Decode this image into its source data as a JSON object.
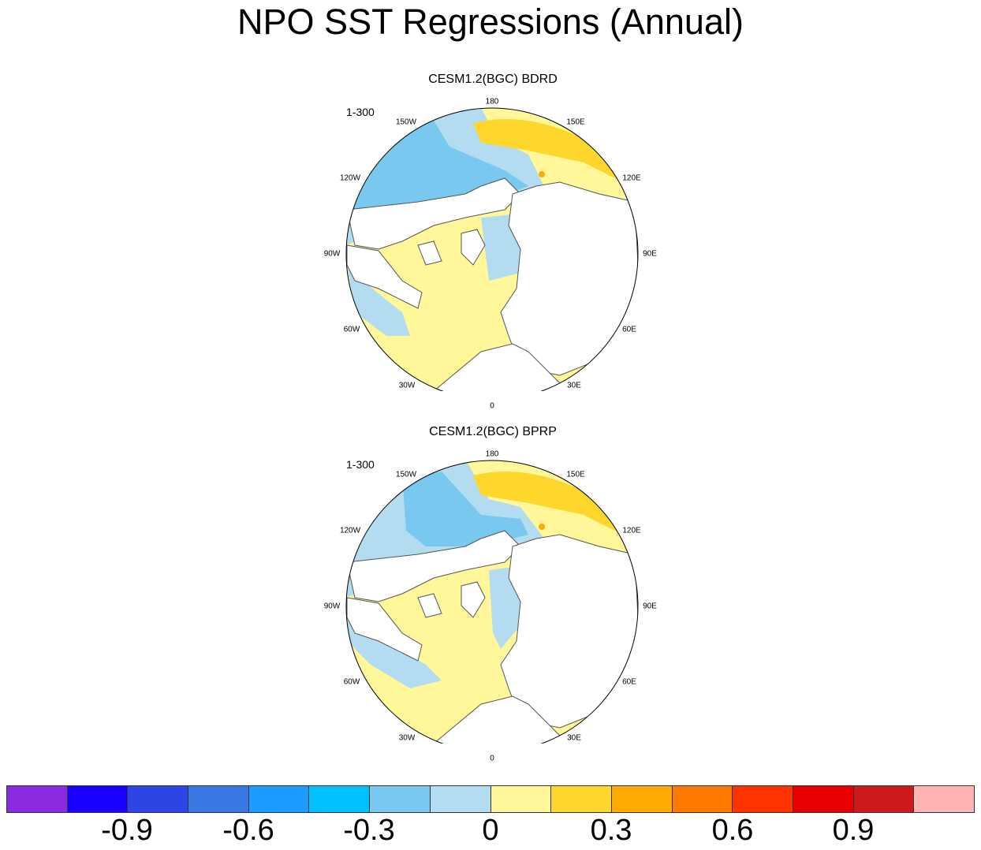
{
  "title": "NPO SST Regressions (Annual)",
  "panels": [
    {
      "title": "CESM1.2(BGC) BDRD",
      "period": "1-300"
    },
    {
      "title": "CESM1.2(BGC) BPRP",
      "period": "1-300"
    }
  ],
  "lon_labels": [
    "180",
    "150E",
    "120E",
    "90E",
    "60E",
    "30E",
    "0",
    "30W",
    "60W",
    "90W",
    "120W",
    "150W"
  ],
  "colorbar": {
    "colors": [
      "#8a2be2",
      "#1a00ff",
      "#2e45e6",
      "#3a78e6",
      "#1e9bff",
      "#00c0ff",
      "#78c8f0",
      "#b3dcf0",
      "#fff79a",
      "#ffd62b",
      "#ffaa00",
      "#ff7a00",
      "#ff3300",
      "#e80000",
      "#cc1a1a",
      "#ffb3b3"
    ],
    "tick_labels": [
      "-0.9",
      "-0.6",
      "-0.3",
      "0",
      "0.3",
      "0.6",
      "0.9"
    ]
  },
  "palette": {
    "ocean_neg_mid": "#78c8f0",
    "ocean_neg_light": "#b3dcf0",
    "ocean_pos_light": "#fff79a",
    "ocean_pos_mid": "#ffd62b",
    "ocean_pos_strong": "#ffaa00",
    "land": "#ffffff",
    "coast": "#555555"
  }
}
